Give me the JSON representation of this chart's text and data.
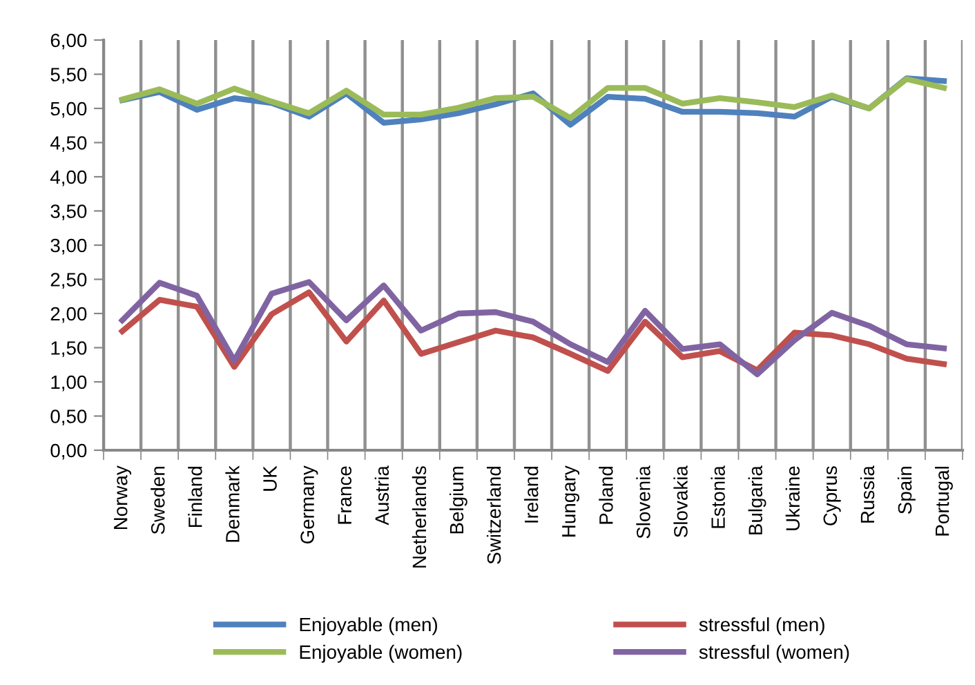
{
  "chart_data": {
    "type": "line",
    "categories": [
      "Norway",
      "Sweden",
      "Finland",
      "Denmark",
      "UK",
      "Germany",
      "France",
      "Austria",
      "Netherlands",
      "Belgium",
      "Switzerland",
      "Ireland",
      "Hungary",
      "Poland",
      "Slovenia",
      "Slovakia",
      "Estonia",
      "Bulgaria",
      "Ukraine",
      "Cyprus",
      "Russia",
      "Spain",
      "Portugal"
    ],
    "series": [
      {
        "name": "Enjoyable (men)",
        "color": "#4f81bd",
        "values": [
          5.12,
          5.24,
          4.98,
          5.15,
          5.08,
          4.88,
          5.22,
          4.79,
          4.84,
          4.93,
          5.06,
          5.22,
          4.76,
          5.17,
          5.14,
          4.95,
          4.95,
          4.93,
          4.88,
          5.17,
          5.0,
          5.44,
          5.4
        ]
      },
      {
        "name": "stressful (men)",
        "color": "#c0504d",
        "values": [
          1.74,
          2.2,
          2.1,
          1.22,
          1.99,
          2.31,
          1.59,
          2.19,
          1.41,
          1.58,
          1.75,
          1.65,
          1.41,
          1.16,
          1.88,
          1.36,
          1.45,
          1.17,
          1.72,
          1.68,
          1.55,
          1.34,
          1.26
        ]
      },
      {
        "name": "Enjoyable (women)",
        "color": "#9bbb59",
        "values": [
          5.13,
          5.28,
          5.07,
          5.29,
          5.1,
          4.93,
          5.26,
          4.91,
          4.91,
          5.01,
          5.15,
          5.17,
          4.86,
          5.3,
          5.3,
          5.07,
          5.15,
          5.09,
          5.02,
          5.19,
          5.0,
          5.43,
          5.3
        ]
      },
      {
        "name": "stressful (women)",
        "color": "#8064a2",
        "values": [
          1.9,
          2.45,
          2.26,
          1.31,
          2.29,
          2.46,
          1.9,
          2.41,
          1.75,
          2.0,
          2.02,
          1.88,
          1.55,
          1.29,
          2.04,
          1.48,
          1.55,
          1.11,
          1.61,
          2.01,
          1.82,
          1.55,
          1.49
        ]
      }
    ],
    "ylim": [
      0,
      6
    ],
    "yticks": [
      {
        "value": 0,
        "label": "0,00"
      },
      {
        "value": 0.5,
        "label": "0,50"
      },
      {
        "value": 1,
        "label": "1,00"
      },
      {
        "value": 1.5,
        "label": "1,50"
      },
      {
        "value": 2,
        "label": "2,00"
      },
      {
        "value": 2.5,
        "label": "2,50"
      },
      {
        "value": 3,
        "label": "3,00"
      },
      {
        "value": 3.5,
        "label": "3,50"
      },
      {
        "value": 4,
        "label": "4,00"
      },
      {
        "value": 4.5,
        "label": "4,50"
      },
      {
        "value": 5,
        "label": "5,00"
      },
      {
        "value": 5.5,
        "label": "5,50"
      },
      {
        "value": 6,
        "label": "6,00"
      }
    ],
    "grid": "x",
    "legend": "bottom",
    "marker": "none",
    "line_style": "solid"
  }
}
